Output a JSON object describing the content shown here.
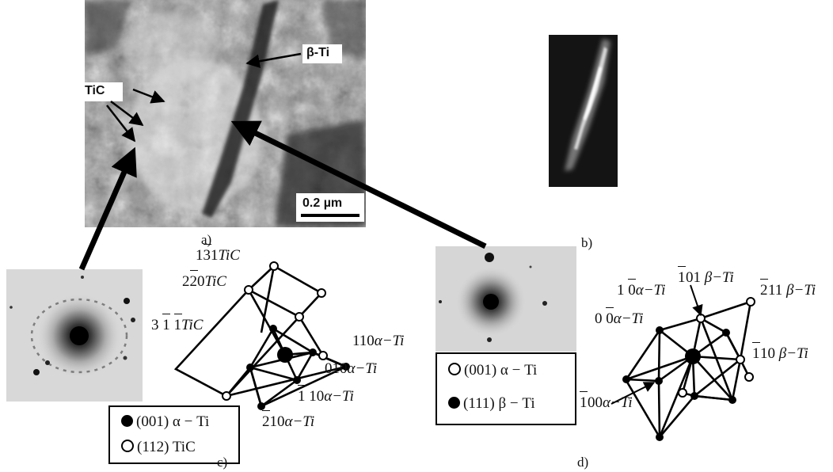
{
  "panel_a": {
    "tic_label": "TiC",
    "beta_label": "β-Ti",
    "scale_bar": "0.2 µm",
    "caption": "a)"
  },
  "panel_b": {
    "caption": "b)"
  },
  "panel_c": {
    "caption": "c)",
    "labels": {
      "l131": "131",
      "l131_sub": "TiC",
      "l220": "220",
      "l220_sub": "TiC",
      "l311": "3 1 1",
      "l311_sub": "TiC",
      "l110": "110",
      "l110_sub": "α−Ti",
      "l010": "010",
      "l010_sub": "α−Ti",
      "l1b10": "1 10",
      "l1b10_sub": "α−Ti",
      "l2b10": "210",
      "l2b10_sub": "α−Ti"
    },
    "legend": {
      "filled": "(001) α − Ti",
      "open": "(112) TiC"
    }
  },
  "panel_d": {
    "caption": "d)",
    "labels": {
      "l101": "01",
      "l101_sub": "β−Ti",
      "l1b10a": "1 0",
      "l1b10a_sub": "α−Ti",
      "l211": "11",
      "l211_sub": "β−Ti",
      "l0b10": "0 0",
      "l0b10_sub": "α−Ti",
      "l1b10b": "10",
      "l1b10b_sub": "β−Ti",
      "l100": "00",
      "l100_sub": "α−Ti"
    },
    "legend": {
      "open": "(001) α − Ti",
      "filled": "(111) β − Ti"
    }
  }
}
